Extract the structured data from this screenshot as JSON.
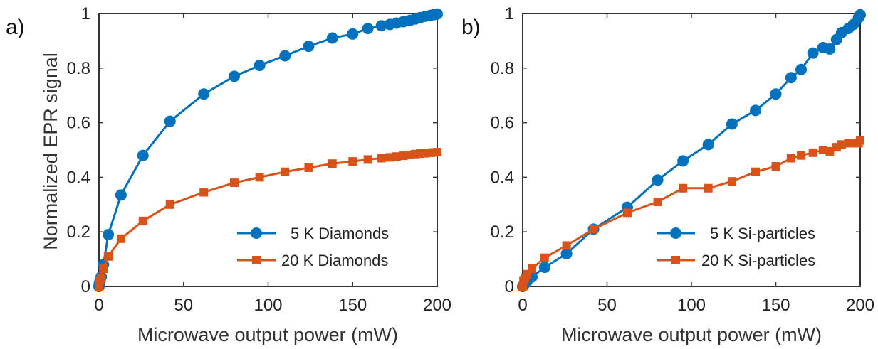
{
  "colors": {
    "series1": "#0072BD",
    "series2": "#D95319",
    "axis": "#333333"
  },
  "chart_data": [
    {
      "type": "line",
      "panel_label": "a)",
      "xlabel": "Microwave output power (mW)",
      "ylabel": "Normalized EPR signal",
      "xlim": [
        0,
        200
      ],
      "ylim": [
        0,
        1
      ],
      "xticks": [
        "0",
        "50",
        "100",
        "150",
        "200"
      ],
      "yticks": [
        "0",
        "0.2",
        "0.4",
        "0.6",
        "0.8",
        "1"
      ],
      "legend_position": "bottom-right",
      "series": [
        {
          "name": "5 K Diamonds",
          "marker": "circle",
          "color": "#0072BD",
          "x": [
            0,
            0.2,
            0.6,
            1.3,
            2.6,
            5.5,
            13,
            26,
            42,
            62,
            80,
            95,
            110,
            124,
            138,
            150,
            159,
            167,
            172,
            176,
            180,
            184,
            187,
            190,
            193,
            196,
            198,
            200
          ],
          "y": [
            0,
            0.01,
            0.02,
            0.035,
            0.08,
            0.19,
            0.335,
            0.48,
            0.605,
            0.705,
            0.77,
            0.81,
            0.845,
            0.88,
            0.91,
            0.925,
            0.945,
            0.955,
            0.96,
            0.965,
            0.97,
            0.975,
            0.98,
            0.985,
            0.99,
            0.993,
            0.996,
            0.998
          ]
        },
        {
          "name": "20 K Diamonds",
          "marker": "square",
          "color": "#D95319",
          "x": [
            0,
            0.2,
            0.6,
            1.3,
            2.6,
            5.5,
            13,
            26,
            42,
            62,
            80,
            95,
            110,
            124,
            138,
            150,
            159,
            167,
            172,
            176,
            180,
            184,
            187,
            190,
            193,
            196,
            198,
            200
          ],
          "y": [
            0,
            0.01,
            0.02,
            0.03,
            0.065,
            0.11,
            0.175,
            0.24,
            0.3,
            0.345,
            0.38,
            0.4,
            0.42,
            0.435,
            0.45,
            0.458,
            0.465,
            0.47,
            0.473,
            0.476,
            0.479,
            0.482,
            0.485,
            0.487,
            0.488,
            0.49,
            0.491,
            0.492
          ]
        }
      ]
    },
    {
      "type": "line",
      "panel_label": "b)",
      "xlabel": "Microwave output power (mW)",
      "ylabel": "",
      "xlim": [
        0,
        200
      ],
      "ylim": [
        0,
        1
      ],
      "xticks": [
        "0",
        "50",
        "100",
        "150",
        "200"
      ],
      "yticks": [
        "0",
        "0.2",
        "0.4",
        "0.6",
        "0.8",
        "1"
      ],
      "legend_position": "bottom-right",
      "series": [
        {
          "name": "5 K Si-particles",
          "marker": "circle",
          "color": "#0072BD",
          "x": [
            0,
            0.5,
            1.3,
            2.6,
            5.5,
            13,
            26,
            42,
            62,
            80,
            95,
            110,
            124,
            138,
            150,
            159,
            165,
            172,
            178,
            182,
            186,
            189,
            193,
            196,
            199,
            200
          ],
          "y": [
            0,
            0.005,
            0.01,
            0.02,
            0.035,
            0.07,
            0.12,
            0.21,
            0.29,
            0.39,
            0.46,
            0.52,
            0.595,
            0.645,
            0.705,
            0.765,
            0.795,
            0.855,
            0.875,
            0.87,
            0.905,
            0.93,
            0.945,
            0.96,
            0.985,
            0.995
          ]
        },
        {
          "name": "20 K Si-particles",
          "marker": "square",
          "color": "#D95319",
          "x": [
            0,
            0.5,
            1.3,
            2.6,
            5.5,
            13,
            26,
            42,
            62,
            80,
            95,
            110,
            124,
            138,
            150,
            159,
            165,
            172,
            178,
            182,
            186,
            189,
            193,
            196,
            199,
            200
          ],
          "y": [
            0,
            0.02,
            0.03,
            0.045,
            0.065,
            0.105,
            0.15,
            0.21,
            0.27,
            0.31,
            0.36,
            0.36,
            0.385,
            0.42,
            0.44,
            0.47,
            0.48,
            0.49,
            0.5,
            0.495,
            0.51,
            0.52,
            0.525,
            0.525,
            0.525,
            0.535
          ]
        }
      ]
    }
  ]
}
